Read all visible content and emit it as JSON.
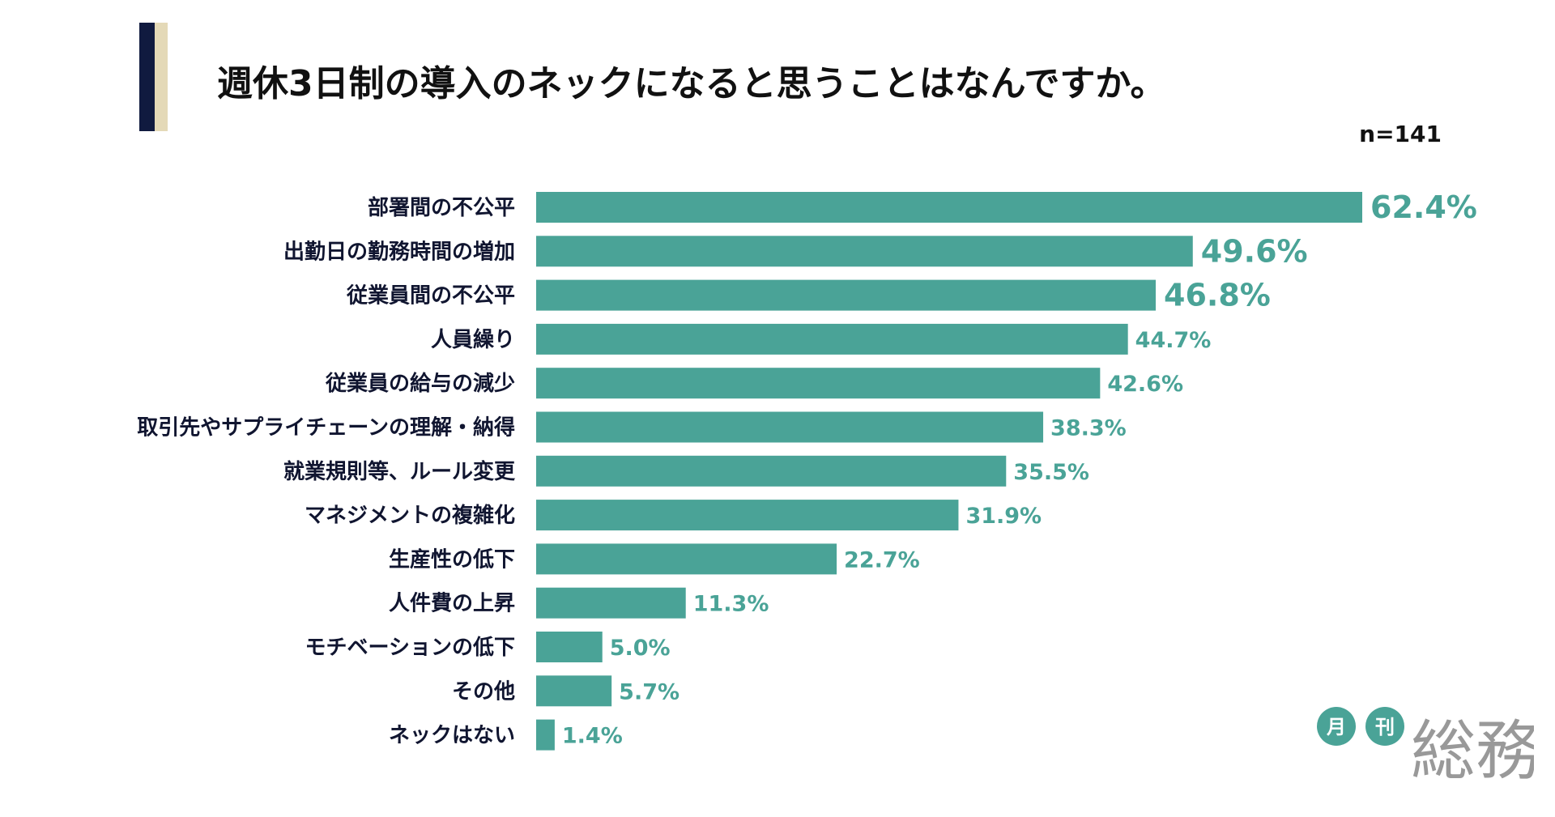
{
  "header": {
    "title": "週休3日制の導入のネックになると思うことはなんですか。",
    "sample_size": "n=141"
  },
  "chart_data": {
    "type": "bar",
    "orientation": "horizontal",
    "categories": [
      "部署間の不公平",
      "出勤日の勤務時間の増加",
      "従業員間の不公平",
      "人員繰り",
      "従業員の給与の減少",
      "取引先やサプライチェーンの理解・納得",
      "就業規則等、ルール変更",
      "マネジメントの複雑化",
      "生産性の低下",
      "人件費の上昇",
      "モチベーションの低下",
      "その他",
      "ネックはない"
    ],
    "values": [
      62.4,
      49.6,
      46.8,
      44.7,
      42.6,
      38.3,
      35.5,
      31.9,
      22.7,
      11.3,
      5.0,
      5.7,
      1.4
    ],
    "value_labels": [
      "62.4%",
      "49.6%",
      "46.8%",
      "44.7%",
      "42.6%",
      "38.3%",
      "35.5%",
      "31.9%",
      "22.7%",
      "11.3%",
      "5.0%",
      "5.7%",
      "1.4%"
    ],
    "bar_color": "#4aa397",
    "label_color": "#4aa397",
    "text_color": "#101530"
  },
  "brand": {
    "badge_1": "月",
    "badge_2": "刊",
    "name": "総務",
    "accent": "#4aa397",
    "gray": "#999999"
  },
  "decor": {
    "stripe_navy": "#101a3f",
    "stripe_beige": "#e4d9b7"
  }
}
